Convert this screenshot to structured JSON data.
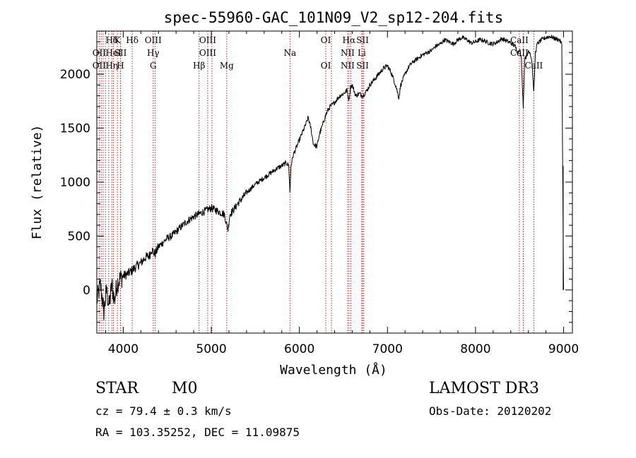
{
  "chart_data": {
    "type": "line",
    "title": "spec-55960-GAC_101N09_V2_sp12-204.fits",
    "xlabel": "Wavelength (Å)",
    "ylabel": "Flux (relative)",
    "xlim": [
      3700,
      9100
    ],
    "ylim": [
      -400,
      2400
    ],
    "x_ticks": [
      4000,
      5000,
      6000,
      7000,
      8000,
      9000
    ],
    "x_tick_labels": [
      "4000",
      "5000",
      "6000",
      "7000",
      "8000",
      "9000"
    ],
    "y_ticks": [
      0,
      500,
      1000,
      1500,
      2000
    ],
    "y_tick_labels": [
      "0",
      "500",
      "1000",
      "1500",
      "2000"
    ],
    "grid": false,
    "series": [
      {
        "name": "spectrum",
        "x": [
          3700,
          3740,
          3780,
          3810,
          3840,
          3870,
          3900,
          3930,
          3960,
          4000,
          4050,
          4100,
          4150,
          4200,
          4250,
          4300,
          4320,
          4360,
          4400,
          4450,
          4500,
          4550,
          4600,
          4650,
          4700,
          4750,
          4800,
          4850,
          4900,
          4950,
          5000,
          5050,
          5100,
          5150,
          5170,
          5190,
          5210,
          5250,
          5300,
          5350,
          5400,
          5450,
          5500,
          5550,
          5600,
          5650,
          5700,
          5750,
          5800,
          5850,
          5880,
          5893,
          5905,
          5930,
          5980,
          6030,
          6080,
          6100,
          6130,
          6160,
          6200,
          6230,
          6260,
          6290,
          6320,
          6350,
          6380,
          6420,
          6460,
          6500,
          6540,
          6563,
          6580,
          6600,
          6640,
          6680,
          6720,
          6760,
          6800,
          6850,
          6900,
          6950,
          7000,
          7050,
          7100,
          7130,
          7150,
          7200,
          7250,
          7300,
          7350,
          7400,
          7450,
          7500,
          7550,
          7600,
          7650,
          7700,
          7750,
          7800,
          7850,
          7900,
          7950,
          8000,
          8050,
          8100,
          8150,
          8200,
          8250,
          8300,
          8350,
          8400,
          8450,
          8480,
          8500,
          8520,
          8542,
          8560,
          8580,
          8600,
          8620,
          8640,
          8662,
          8680,
          8700,
          8750,
          8800,
          8850,
          8900,
          8950,
          8980,
          9000
        ],
        "y": [
          -100,
          50,
          -200,
          0,
          -150,
          50,
          -100,
          60,
          100,
          130,
          150,
          180,
          220,
          250,
          300,
          320,
          380,
          330,
          400,
          440,
          480,
          500,
          540,
          580,
          620,
          650,
          680,
          700,
          720,
          740,
          760,
          740,
          720,
          700,
          620,
          560,
          700,
          740,
          800,
          850,
          900,
          940,
          980,
          1010,
          1040,
          1070,
          1100,
          1130,
          1150,
          1180,
          1150,
          900,
          1150,
          1250,
          1350,
          1450,
          1550,
          1600,
          1500,
          1350,
          1330,
          1450,
          1520,
          1600,
          1660,
          1700,
          1720,
          1760,
          1800,
          1820,
          1850,
          1760,
          1880,
          1900,
          1800,
          1820,
          1800,
          1840,
          1900,
          1950,
          2000,
          2050,
          2080,
          2000,
          1880,
          1780,
          1900,
          2000,
          2080,
          2120,
          2150,
          2180,
          2200,
          2220,
          2260,
          2280,
          2320,
          2300,
          2280,
          2320,
          2340,
          2320,
          2290,
          2300,
          2320,
          2310,
          2290,
          2280,
          2300,
          2330,
          2310,
          2290,
          2260,
          2200,
          2240,
          2140,
          1700,
          2170,
          2150,
          2220,
          2200,
          2120,
          1830,
          2200,
          2280,
          2320,
          2340,
          2350,
          2330,
          2320,
          2280,
          0
        ]
      }
    ],
    "line_markers": [
      {
        "wavelength": 3727,
        "row1": "",
        "row2": "OII",
        "row3": "OII"
      },
      {
        "wavelength": 3750,
        "row1": "",
        "row2": "",
        "row3": ""
      },
      {
        "wavelength": 3771,
        "row1": "",
        "row2": "",
        "row3": ""
      },
      {
        "wavelength": 3798,
        "row1": "",
        "row2": "",
        "row3": ""
      },
      {
        "wavelength": 3835,
        "row1": "",
        "row2": "",
        "row3": ""
      },
      {
        "wavelength": 3870,
        "row1": "Hδ",
        "row2": "",
        "row3": "Hη"
      },
      {
        "wavelength": 3889,
        "row1": "",
        "row2": "HeI",
        "row3": ""
      },
      {
        "wavelength": 3934,
        "row1": "K",
        "row2": "",
        "row3": ""
      },
      {
        "wavelength": 3969,
        "row1": "",
        "row2": "SII",
        "row3": "H"
      },
      {
        "wavelength": 4102,
        "row1": "Hδ",
        "row2": "",
        "row3": ""
      },
      {
        "wavelength": 4340,
        "row1": "OIII",
        "row2": "Hγ",
        "row3": "G"
      },
      {
        "wavelength": 4363,
        "row1": "",
        "row2": "",
        "row3": ""
      },
      {
        "wavelength": 4861,
        "row1": "",
        "row2": "",
        "row3": "Hβ"
      },
      {
        "wavelength": 4959,
        "row1": "OIII",
        "row2": "OIII",
        "row3": ""
      },
      {
        "wavelength": 5007,
        "row1": "",
        "row2": "",
        "row3": ""
      },
      {
        "wavelength": 5175,
        "row1": "",
        "row2": "",
        "row3": "Mg"
      },
      {
        "wavelength": 5893,
        "row1": "",
        "row2": "Na",
        "row3": ""
      },
      {
        "wavelength": 6300,
        "row1": "OI",
        "row2": "",
        "row3": "OI"
      },
      {
        "wavelength": 6364,
        "row1": "",
        "row2": "",
        "row3": ""
      },
      {
        "wavelength": 6548,
        "row1": "",
        "row2": "NII",
        "row3": "NII"
      },
      {
        "wavelength": 6563,
        "row1": "Hα",
        "row2": "",
        "row3": ""
      },
      {
        "wavelength": 6583,
        "row1": "",
        "row2": "",
        "row3": ""
      },
      {
        "wavelength": 6708,
        "row1": "",
        "row2": "Li",
        "row3": ""
      },
      {
        "wavelength": 6717,
        "row1": "SII",
        "row2": "",
        "row3": "SII"
      },
      {
        "wavelength": 6731,
        "row1": "",
        "row2": "",
        "row3": ""
      },
      {
        "wavelength": 8498,
        "row1": "CaII",
        "row2": "CaII",
        "row3": ""
      },
      {
        "wavelength": 8542,
        "row1": "",
        "row2": "",
        "row3": ""
      },
      {
        "wavelength": 8662,
        "row1": "",
        "row2": "",
        "row3": "CaII"
      }
    ]
  },
  "info": {
    "object_class": "STAR",
    "subclass": "M0",
    "survey": "LAMOST DR3",
    "redshift": "cz = 79.4 ± 0.3 km/s",
    "obs_date": "Obs-Date: 20120202",
    "coords": "RA = 103.35252, DEC =  11.09875"
  },
  "colors": {
    "spectrum": "#000000",
    "marker": "#b22222",
    "axis": "#000000"
  }
}
